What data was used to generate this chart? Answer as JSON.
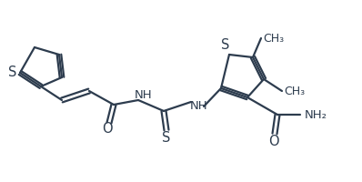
{
  "bg_color": "#ffffff",
  "line_color": "#2d3c4e",
  "line_width": 1.6,
  "font_size": 9.5,
  "figsize": [
    3.98,
    2.0
  ],
  "dpi": 100,
  "atoms": {
    "S_text": "S",
    "O_text": "O",
    "NH_text": "NH",
    "NH2_text": "NH₂",
    "H_text": "H"
  }
}
